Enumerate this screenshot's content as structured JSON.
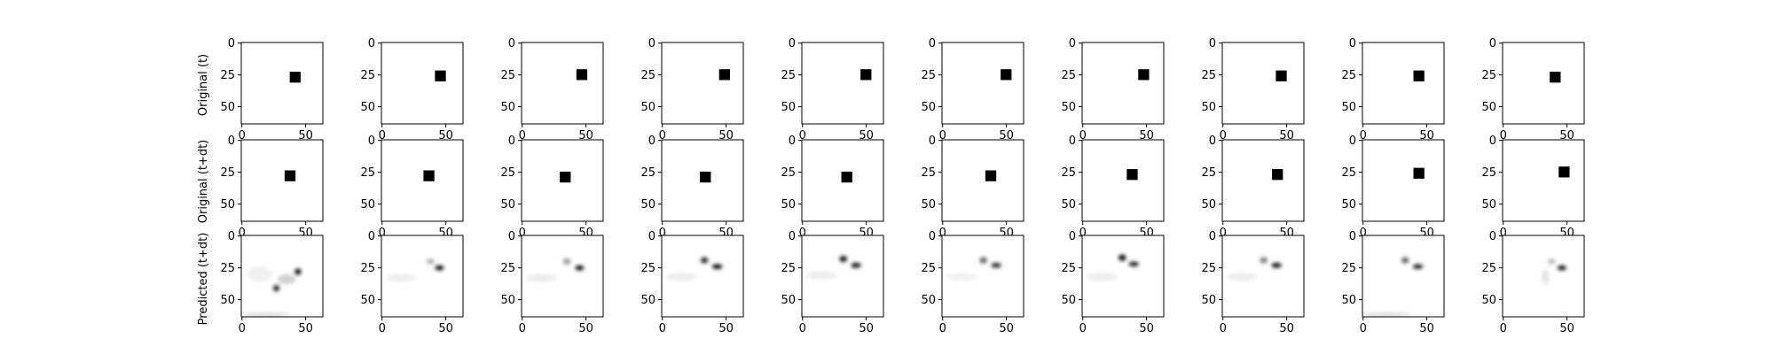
{
  "chart_data": {
    "type": "heatmap",
    "layout": {
      "rows": 3,
      "cols": 10
    },
    "row_labels": [
      "Original (t)",
      "Original (t+dt)",
      "Predicted (t+dt)"
    ],
    "image_size": [
      64,
      64
    ],
    "x_ticks": [
      0,
      50
    ],
    "y_ticks": [
      0,
      25,
      50
    ],
    "colormap": "gray_r",
    "square_size": 9,
    "original_t": [
      {
        "x": 42,
        "y": 27
      },
      {
        "x": 46,
        "y": 26
      },
      {
        "x": 47,
        "y": 25
      },
      {
        "x": 49,
        "y": 25
      },
      {
        "x": 50,
        "y": 25
      },
      {
        "x": 50,
        "y": 25
      },
      {
        "x": 48,
        "y": 25
      },
      {
        "x": 46,
        "y": 26
      },
      {
        "x": 44,
        "y": 26
      },
      {
        "x": 41,
        "y": 27
      }
    ],
    "original_t_dt": [
      {
        "x": 38,
        "y": 28
      },
      {
        "x": 37,
        "y": 28
      },
      {
        "x": 34,
        "y": 29
      },
      {
        "x": 34,
        "y": 29
      },
      {
        "x": 35,
        "y": 29
      },
      {
        "x": 38,
        "y": 28
      },
      {
        "x": 39,
        "y": 27
      },
      {
        "x": 43,
        "y": 27
      },
      {
        "x": 44,
        "y": 26
      },
      {
        "x": 48,
        "y": 25
      }
    ],
    "predicted_t_dt": [
      [
        {
          "x": 44,
          "y": 28,
          "sx": 2.5,
          "sy": 2.5,
          "a": 0.95
        },
        {
          "x": 27,
          "y": 41,
          "sx": 2.5,
          "sy": 2.5,
          "a": 0.85
        },
        {
          "x": 35,
          "y": 34,
          "sx": 7,
          "sy": 4,
          "a": 0.18
        },
        {
          "x": 14,
          "y": 30,
          "sx": 10,
          "sy": 6,
          "a": 0.06
        },
        {
          "x": 18,
          "y": 62,
          "sx": 20,
          "sy": 2,
          "a": 0.12
        }
      ],
      [
        {
          "x": 45,
          "y": 25,
          "sx": 3.5,
          "sy": 2,
          "a": 0.95
        },
        {
          "x": 38,
          "y": 20,
          "sx": 3,
          "sy": 2,
          "a": 0.35
        },
        {
          "x": 15,
          "y": 33,
          "sx": 12,
          "sy": 3,
          "a": 0.07
        }
      ],
      [
        {
          "x": 45,
          "y": 25,
          "sx": 3.5,
          "sy": 2,
          "a": 0.95
        },
        {
          "x": 35,
          "y": 20,
          "sx": 3,
          "sy": 2.5,
          "a": 0.4
        },
        {
          "x": 15,
          "y": 33,
          "sx": 12,
          "sy": 3,
          "a": 0.08
        }
      ],
      [
        {
          "x": 43,
          "y": 24,
          "sx": 4,
          "sy": 2,
          "a": 0.95
        },
        {
          "x": 33,
          "y": 19,
          "sx": 3,
          "sy": 2.5,
          "a": 0.8
        },
        {
          "x": 15,
          "y": 32,
          "sx": 12,
          "sy": 3,
          "a": 0.08
        }
      ],
      [
        {
          "x": 42,
          "y": 23,
          "sx": 4,
          "sy": 2,
          "a": 0.9
        },
        {
          "x": 32,
          "y": 18,
          "sx": 3,
          "sy": 2.5,
          "a": 0.9
        },
        {
          "x": 15,
          "y": 31,
          "sx": 12,
          "sy": 3,
          "a": 0.08
        }
      ],
      [
        {
          "x": 42,
          "y": 23,
          "sx": 4,
          "sy": 2,
          "a": 0.8
        },
        {
          "x": 32,
          "y": 19,
          "sx": 3,
          "sy": 2.5,
          "a": 0.6
        },
        {
          "x": 15,
          "y": 32,
          "sx": 12,
          "sy": 3,
          "a": 0.06
        }
      ],
      [
        {
          "x": 40,
          "y": 22,
          "sx": 4,
          "sy": 2,
          "a": 0.85
        },
        {
          "x": 31,
          "y": 17,
          "sx": 3,
          "sy": 2.5,
          "a": 0.95
        },
        {
          "x": 15,
          "y": 32,
          "sx": 12,
          "sy": 3,
          "a": 0.08
        }
      ],
      [
        {
          "x": 42,
          "y": 23,
          "sx": 4,
          "sy": 2,
          "a": 0.9
        },
        {
          "x": 32,
          "y": 19,
          "sx": 3,
          "sy": 2.5,
          "a": 0.5
        },
        {
          "x": 15,
          "y": 32,
          "sx": 12,
          "sy": 3,
          "a": 0.08
        }
      ],
      [
        {
          "x": 43,
          "y": 24,
          "sx": 4,
          "sy": 2,
          "a": 0.85
        },
        {
          "x": 33,
          "y": 19,
          "sx": 3,
          "sy": 2.5,
          "a": 0.6
        },
        {
          "x": 18,
          "y": 62,
          "sx": 20,
          "sy": 2,
          "a": 0.12
        }
      ],
      [
        {
          "x": 46,
          "y": 25,
          "sx": 3.5,
          "sy": 2,
          "a": 0.9
        },
        {
          "x": 38,
          "y": 20,
          "sx": 3,
          "sy": 2,
          "a": 0.3
        },
        {
          "x": 33,
          "y": 32,
          "sx": 3,
          "sy": 6,
          "a": 0.1
        }
      ]
    ]
  }
}
